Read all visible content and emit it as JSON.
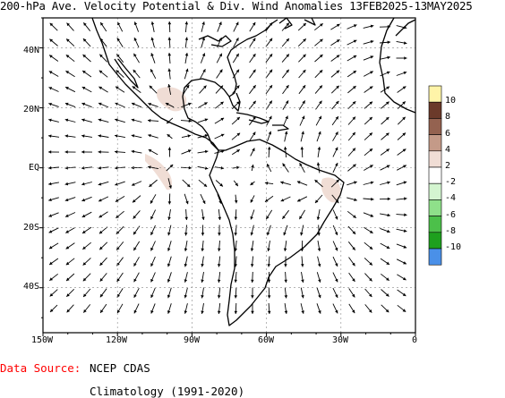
{
  "title": "200-hPa Ave. Velocity Potential & Div. Wind Anomalies 13FEB2025-13MAY2025",
  "map": {
    "lat_labels": [
      "40N",
      "20N",
      "EQ",
      "20S",
      "40S"
    ],
    "lon_labels": [
      "150W",
      "120W",
      "90W",
      "60W",
      "30W",
      "0"
    ],
    "lat_range": [
      -55,
      50
    ],
    "lon_range": [
      -150,
      0
    ],
    "anomaly_patches": [
      {
        "region": "central-america-pacific",
        "sign": "positive",
        "color": "#f0ddd5"
      },
      {
        "region": "eastern-pacific-equatorial",
        "sign": "positive",
        "color": "#f0ddd5"
      },
      {
        "region": "northeast-brazil",
        "sign": "positive",
        "color": "#f0ddd5"
      }
    ]
  },
  "legend": {
    "entries": [
      {
        "label": "10",
        "color": "#fff4a8"
      },
      {
        "label": "8",
        "color": "#6b3a2a"
      },
      {
        "label": "6",
        "color": "#946250"
      },
      {
        "label": "4",
        "color": "#c49a88"
      },
      {
        "label": "2",
        "color": "#f0ddd5"
      },
      {
        "label": "-2",
        "color": "#ffffff"
      },
      {
        "label": "-4",
        "color": "#d4f5d0"
      },
      {
        "label": "-6",
        "color": "#8fe08a"
      },
      {
        "label": "-8",
        "color": "#4cc04a"
      },
      {
        "label": "-10",
        "color": "#1ea01e"
      },
      {
        "label": "",
        "color": "#4a90e8"
      }
    ]
  },
  "footer": {
    "source_label": "Data Source:",
    "source_value": "NCEP CDAS",
    "climatology": "Climatology (1991-2020)"
  }
}
